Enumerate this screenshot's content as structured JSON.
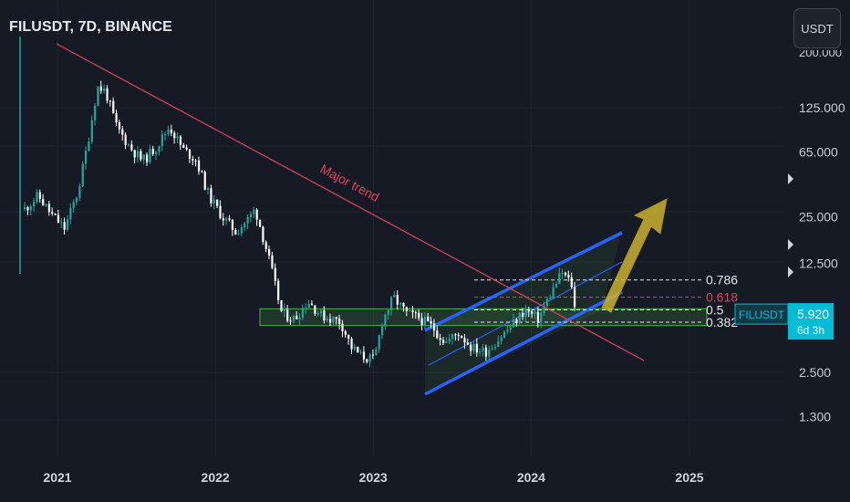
{
  "header": {
    "title": "FILUSDT, 7D, BINANCE"
  },
  "currency_button": {
    "label": "USDT"
  },
  "price_badge": {
    "symbol": "FILUSDT",
    "price": "5.920",
    "countdown": "6d 3h"
  },
  "annotations": {
    "trend_label": "Major trend"
  },
  "colors": {
    "background": "#161a25",
    "up": "#26a69a",
    "down": "#ffffff",
    "trendline": "#e0455a",
    "channel": "#2962ff",
    "zone": "#4caf50",
    "arrow": "#c9b32e",
    "badge": "#00bcd4"
  },
  "chart_data": {
    "type": "candlestick",
    "title": "FILUSDT, 7D, BINANCE",
    "scale": "log",
    "x_ticks": [
      "2021",
      "2022",
      "2023",
      "2024",
      "2025"
    ],
    "y_ticks": [
      "125.000",
      "65.000",
      "25.000",
      "12.500",
      "5.920",
      "2.500",
      "1.300"
    ],
    "ylim": [
      0.95,
      260
    ],
    "last_price": 5.92,
    "fib_levels": [
      {
        "label": "0.786",
        "price": 9.8,
        "color": "#e6e6e6"
      },
      {
        "label": "0.618",
        "price": 7.6,
        "color": "#e0455a"
      },
      {
        "label": "0.5",
        "price": 6.3,
        "color": "#e6e6e6"
      },
      {
        "label": "0.382",
        "price": 5.25,
        "color": "#e6e6e6"
      }
    ],
    "support_zone": [
      5.0,
      6.4
    ],
    "path": [
      [
        "2020-10-15",
        28
      ],
      [
        "2020-11-15",
        34
      ],
      [
        "2020-12-15",
        26
      ],
      [
        "2021-01-15",
        21
      ],
      [
        "2021-02-15",
        36
      ],
      [
        "2021-03-10",
        75
      ],
      [
        "2021-04-01",
        170
      ],
      [
        "2021-04-20",
        160
      ],
      [
        "2021-05-15",
        95
      ],
      [
        "2021-06-15",
        70
      ],
      [
        "2021-07-15",
        57
      ],
      [
        "2021-08-15",
        70
      ],
      [
        "2021-09-15",
        95
      ],
      [
        "2021-10-15",
        68
      ],
      [
        "2021-11-15",
        58
      ],
      [
        "2021-12-15",
        34
      ],
      [
        "2022-01-15",
        25
      ],
      [
        "2022-02-15",
        20
      ],
      [
        "2022-03-15",
        24
      ],
      [
        "2022-04-01",
        28
      ],
      [
        "2022-05-01",
        14
      ],
      [
        "2022-06-01",
        6
      ],
      [
        "2022-07-01",
        5.5
      ],
      [
        "2022-08-01",
        7.2
      ],
      [
        "2022-09-01",
        5.8
      ],
      [
        "2022-10-15",
        5.3
      ],
      [
        "2022-11-10",
        3.6
      ],
      [
        "2022-12-01",
        3.2
      ],
      [
        "2023-01-01",
        3.0
      ],
      [
        "2023-01-20",
        5.4
      ],
      [
        "2023-02-15",
        7.6
      ],
      [
        "2023-03-15",
        6.0
      ],
      [
        "2023-04-15",
        5.6
      ],
      [
        "2023-05-15",
        4.9
      ],
      [
        "2023-06-15",
        3.9
      ],
      [
        "2023-07-15",
        4.5
      ],
      [
        "2023-08-15",
        3.6
      ],
      [
        "2023-09-15",
        3.4
      ],
      [
        "2023-10-15",
        4.1
      ],
      [
        "2023-11-15",
        5.0
      ],
      [
        "2023-12-15",
        6.3
      ],
      [
        "2024-01-15",
        5.5
      ],
      [
        "2024-02-15",
        8.2
      ],
      [
        "2024-03-10",
        11.0
      ],
      [
        "2024-04-01",
        9.2
      ],
      [
        "2024-04-10",
        5.92
      ]
    ]
  }
}
